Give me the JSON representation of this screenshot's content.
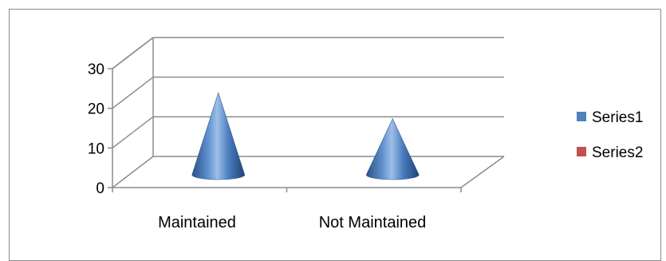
{
  "chart_data": {
    "type": "bar",
    "bar_shape": "3d-cone",
    "categories": [
      "Maintained",
      "Not Maintained"
    ],
    "series": [
      {
        "name": "Series1",
        "values": [
          25,
          17
        ],
        "color": "#4F81BD"
      },
      {
        "name": "Series2",
        "values": [
          0,
          0
        ],
        "color": "#C0504D"
      }
    ],
    "ylim": [
      0,
      30
    ],
    "yticks": [
      "0",
      "10",
      "20",
      "30"
    ],
    "ytick_values": [
      0,
      10,
      20,
      30
    ],
    "grid": true,
    "legend_position": "right"
  }
}
